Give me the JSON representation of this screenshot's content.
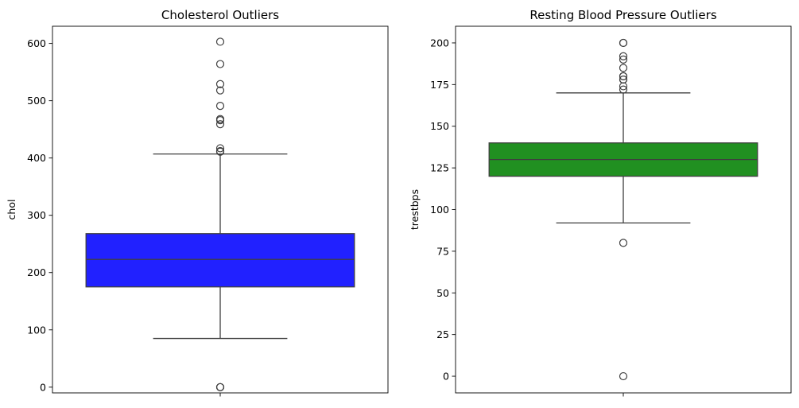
{
  "chart_data": [
    {
      "type": "box",
      "title": "Cholesterol Outliers",
      "xlabel": "",
      "ylabel": "chol",
      "ylim": [
        -10,
        630
      ],
      "yticks": [
        0,
        100,
        200,
        300,
        400,
        500,
        600
      ],
      "box_color": "#0000ff",
      "box": {
        "q1": 175,
        "median": 223,
        "q3": 268,
        "whisker_low": 85,
        "whisker_high": 407
      },
      "outliers": [
        0,
        0,
        0,
        411,
        412,
        417,
        459,
        466,
        468,
        491,
        518,
        529,
        564,
        603
      ],
      "grid": false
    },
    {
      "type": "box",
      "title": "Resting Blood Pressure Outliers",
      "xlabel": "",
      "ylabel": "trestbps",
      "ylim": [
        -10,
        210
      ],
      "yticks": [
        0,
        25,
        50,
        75,
        100,
        125,
        150,
        175,
        200
      ],
      "box_color": "#008000",
      "box": {
        "q1": 120,
        "median": 130,
        "q3": 140,
        "whisker_low": 92,
        "whisker_high": 170
      },
      "outliers": [
        0,
        80,
        172,
        174,
        178,
        178,
        180,
        180,
        185,
        190,
        192,
        200,
        200
      ],
      "grid": false
    }
  ]
}
